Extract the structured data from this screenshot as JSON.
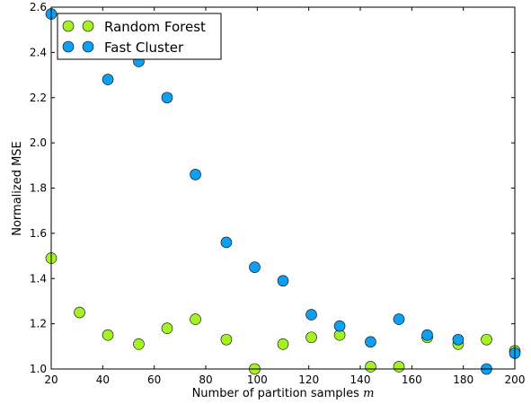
{
  "chart_data": {
    "type": "scatter",
    "title": "",
    "xlabel": "Number of partition samples",
    "xlabel_var": "m",
    "ylabel": "Normalized MSE",
    "xlim": [
      20,
      200
    ],
    "ylim": [
      1.0,
      2.6
    ],
    "x_ticks": [
      20,
      40,
      60,
      80,
      100,
      120,
      140,
      160,
      180,
      200
    ],
    "y_ticks": [
      "1.0",
      "1.2",
      "1.4",
      "1.6",
      "1.8",
      "2.0",
      "2.2",
      "2.4",
      "2.6"
    ],
    "grid": false,
    "legend_position": "top-left",
    "series": [
      {
        "name": "Random Forest",
        "color": "#a6f026",
        "x": [
          20,
          31,
          42,
          54,
          65,
          76,
          88,
          99,
          110,
          121,
          132,
          144,
          155,
          166,
          178,
          189,
          200
        ],
        "y": [
          1.49,
          1.25,
          1.15,
          1.11,
          1.18,
          1.22,
          1.13,
          1.0,
          1.11,
          1.14,
          1.15,
          1.01,
          1.01,
          1.14,
          1.11,
          1.13,
          1.08
        ]
      },
      {
        "name": "Fast Cluster",
        "color": "#0d9ff2",
        "x": [
          20,
          42,
          54,
          65,
          76,
          88,
          99,
          110,
          121,
          132,
          144,
          155,
          166,
          178,
          189,
          200
        ],
        "y": [
          2.57,
          2.28,
          2.36,
          2.2,
          1.86,
          1.56,
          1.45,
          1.39,
          1.24,
          1.19,
          1.12,
          1.22,
          1.15,
          1.13,
          1.0,
          1.07
        ]
      }
    ]
  }
}
